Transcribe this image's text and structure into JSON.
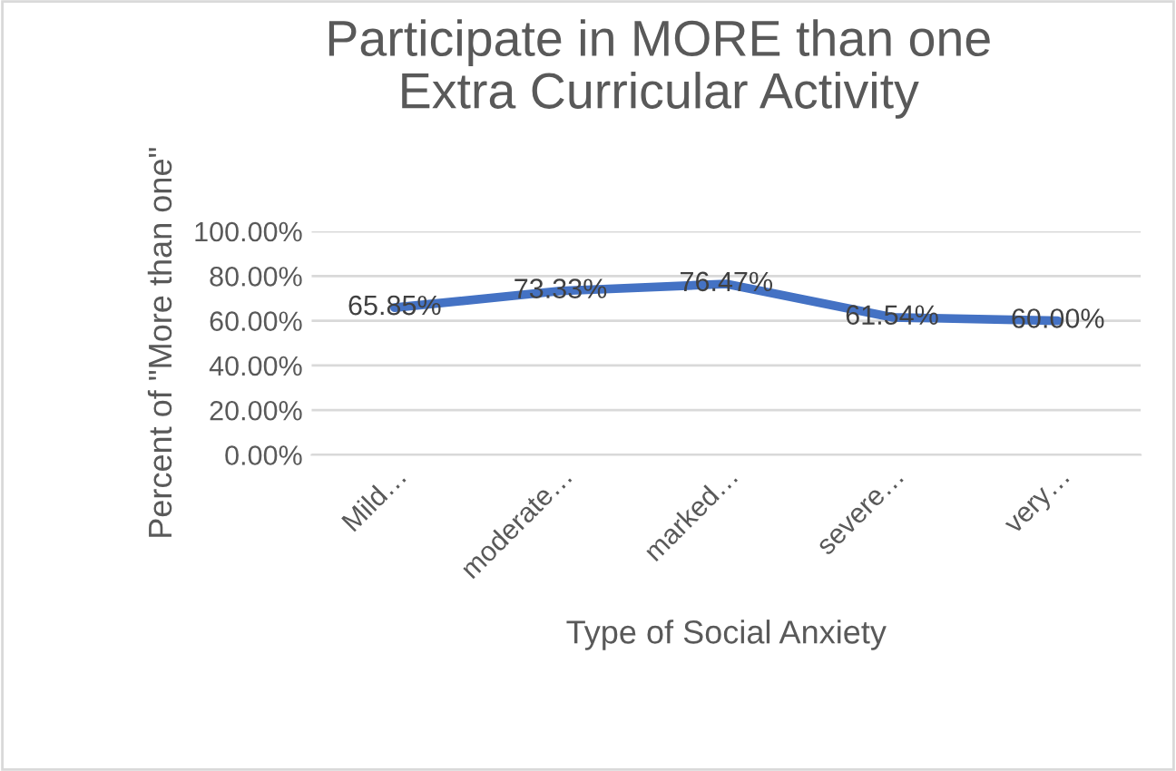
{
  "chart_data": {
    "type": "line",
    "title": "Participate in MORE than one\nExtra Curricular Activity",
    "xlabel": "Type of Social Anxiety",
    "ylabel": "Percent of \"More than one\"",
    "categories": [
      "Mild…",
      "moderate…",
      "marked…",
      "severe…",
      "very…"
    ],
    "series": [
      {
        "color": "#4472c4",
        "values": [
          65.85,
          73.33,
          76.47,
          61.54,
          60.0
        ],
        "value_labels": [
          "65.85%",
          "73.33%",
          "76.47%",
          "61.54%",
          "60.00%"
        ]
      }
    ],
    "ylim": [
      0,
      100
    ],
    "yticks": [
      {
        "value": 0,
        "label": "0.00%"
      },
      {
        "value": 20,
        "label": "20.00%"
      },
      {
        "value": 40,
        "label": "40.00%"
      },
      {
        "value": 60,
        "label": "60.00%"
      },
      {
        "value": 80,
        "label": "80.00%"
      },
      {
        "value": 100,
        "label": "100.00%"
      }
    ],
    "grid": "y",
    "legend": false,
    "marker": "none",
    "line_style": "solid"
  }
}
